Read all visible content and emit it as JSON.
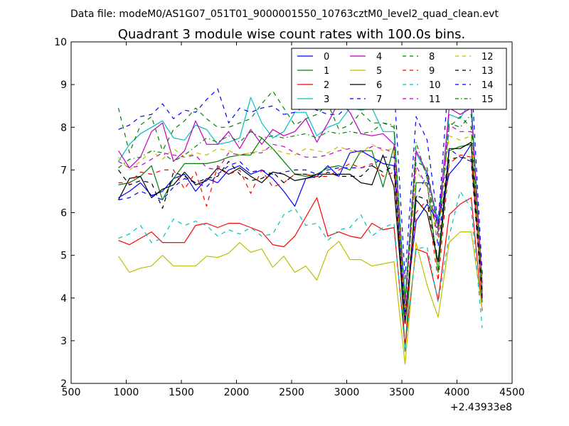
{
  "page": {
    "suptitle": "Data file: modeM0/AS1G07_051T01_9000001550_10763cztM0_level2_quad_clean.evt"
  },
  "chart_data": {
    "type": "line",
    "title": "Quadrant 3 module wise count rates with 100.0s bins.",
    "xlabel": "",
    "ylabel": "",
    "x_offset_label": "+2.43933e8",
    "xlim": [
      500,
      4500
    ],
    "ylim": [
      2,
      10
    ],
    "xticks": [
      500,
      1000,
      1500,
      2000,
      2500,
      3000,
      3500,
      4000,
      4500
    ],
    "yticks": [
      2,
      3,
      4,
      5,
      6,
      7,
      8,
      9,
      10
    ],
    "grid": false,
    "legend": {
      "placement": "top-right",
      "columns": 4
    },
    "x": [
      929,
      1029,
      1129,
      1229,
      1329,
      1429,
      1529,
      1629,
      1729,
      1829,
      1929,
      2029,
      2129,
      2229,
      2329,
      2429,
      2529,
      2629,
      2729,
      2829,
      2929,
      3029,
      3129,
      3229,
      3329,
      3429,
      3529,
      3629,
      3729,
      3829,
      3929,
      4029,
      4129,
      4229
    ],
    "series": [
      {
        "name": "0",
        "color": "#0000ff",
        "dash": "solid",
        "values": [
          6.35,
          6.5,
          6.7,
          6.4,
          6.5,
          6.8,
          6.9,
          6.5,
          6.8,
          6.7,
          7.0,
          7.1,
          6.9,
          7.0,
          6.8,
          6.5,
          6.15,
          6.8,
          6.85,
          7.1,
          6.85,
          7.4,
          7.45,
          7.3,
          7.15,
          7.1,
          3.6,
          5.8,
          6.2,
          5.8,
          6.9,
          7.2,
          7.6,
          4.0
        ]
      },
      {
        "name": "1",
        "color": "#008000",
        "dash": "solid",
        "values": [
          6.65,
          6.7,
          6.85,
          7.1,
          6.3,
          6.8,
          7.15,
          7.15,
          7.15,
          7.2,
          7.3,
          7.35,
          7.35,
          7.75,
          7.5,
          7.2,
          6.9,
          6.85,
          6.9,
          7.05,
          7.1,
          7.0,
          7.45,
          7.45,
          6.6,
          7.55,
          2.75,
          6.7,
          6.7,
          4.6,
          7.45,
          7.55,
          7.6,
          3.9
        ]
      },
      {
        "name": "2",
        "color": "#ff0000",
        "dash": "solid",
        "values": [
          5.35,
          5.25,
          5.4,
          5.55,
          5.3,
          5.3,
          5.3,
          5.7,
          5.75,
          5.65,
          5.75,
          5.75,
          5.65,
          5.55,
          5.25,
          5.2,
          5.45,
          5.9,
          6.35,
          5.45,
          5.55,
          5.45,
          5.4,
          5.75,
          5.6,
          5.65,
          2.9,
          5.15,
          5.05,
          3.95,
          5.95,
          6.2,
          6.35,
          3.7
        ]
      },
      {
        "name": "3",
        "color": "#00bfbf",
        "dash": "solid",
        "values": [
          7.2,
          7.6,
          7.85,
          8.0,
          8.15,
          7.75,
          7.7,
          8.05,
          7.95,
          7.6,
          7.65,
          7.75,
          8.7,
          8.1,
          7.75,
          7.9,
          8.35,
          8.35,
          7.8,
          8.0,
          8.1,
          8.45,
          8.4,
          8.45,
          7.9,
          7.9,
          4.0,
          7.4,
          6.9,
          5.8,
          8.3,
          8.2,
          8.65,
          4.3
        ]
      },
      {
        "name": "4",
        "color": "#bf00bf",
        "dash": "solid",
        "values": [
          7.45,
          7.05,
          7.3,
          7.9,
          8.1,
          7.2,
          7.45,
          8.15,
          7.6,
          7.6,
          7.9,
          7.5,
          7.95,
          7.6,
          7.95,
          7.8,
          7.9,
          8.2,
          7.65,
          8.1,
          8.6,
          8.35,
          7.85,
          7.8,
          7.85,
          7.6,
          3.85,
          7.45,
          6.95,
          5.65,
          8.45,
          8.3,
          8.45,
          4.35
        ]
      },
      {
        "name": "5",
        "color": "#bfbf00",
        "dash": "solid",
        "values": [
          4.98,
          4.6,
          4.7,
          4.75,
          5.0,
          4.75,
          4.75,
          4.75,
          4.98,
          4.95,
          5.05,
          5.3,
          5.07,
          5.15,
          4.72,
          4.98,
          4.6,
          4.75,
          4.42,
          5.1,
          5.33,
          4.9,
          4.9,
          4.75,
          4.8,
          4.85,
          2.45,
          5.3,
          4.3,
          3.55,
          5.3,
          5.55,
          5.55,
          3.75
        ]
      },
      {
        "name": "6",
        "color": "#000000",
        "dash": "solid",
        "values": [
          6.3,
          6.8,
          6.85,
          6.35,
          6.55,
          6.65,
          6.95,
          6.65,
          6.75,
          7.05,
          6.9,
          7.05,
          6.85,
          6.7,
          6.95,
          6.9,
          6.75,
          6.8,
          6.9,
          6.9,
          6.9,
          6.9,
          6.7,
          6.65,
          7.35,
          6.6,
          3.4,
          6.3,
          6.0,
          4.85,
          7.5,
          7.5,
          7.65,
          4.2
        ]
      },
      {
        "name": "7",
        "color": "#0000ff",
        "dash": "dash",
        "values": [
          6.3,
          6.35,
          6.5,
          6.4,
          6.3,
          6.6,
          6.8,
          6.7,
          6.6,
          6.9,
          7.1,
          7.2,
          6.95,
          7.0,
          6.9,
          6.95,
          7.0,
          7.0,
          6.9,
          7.0,
          7.05,
          7.05,
          7.05,
          7.1,
          7.3,
          7.3,
          3.45,
          6.35,
          6.9,
          5.2,
          7.5,
          7.3,
          7.2,
          4.05
        ]
      },
      {
        "name": "8",
        "color": "#008000",
        "dash": "dash",
        "values": [
          8.45,
          7.4,
          8.05,
          8.25,
          7.45,
          7.95,
          8.15,
          8.45,
          8.2,
          8.0,
          8.0,
          8.1,
          8.2,
          8.55,
          8.85,
          8.45,
          8.05,
          8.2,
          8.3,
          8.55,
          7.95,
          8.05,
          8.35,
          8.1,
          8.1,
          8.0,
          3.9,
          7.2,
          7.05,
          5.6,
          8.0,
          8.25,
          8.0,
          4.2
        ]
      },
      {
        "name": "9",
        "color": "#ff0000",
        "dash": "dash",
        "values": [
          6.7,
          6.7,
          6.95,
          6.9,
          7.0,
          7.0,
          6.55,
          6.95,
          6.15,
          7.1,
          6.9,
          7.0,
          6.45,
          7.0,
          6.6,
          6.7,
          6.9,
          6.9,
          6.85,
          6.85,
          7.0,
          7.15,
          7.05,
          7.15,
          6.85,
          6.95,
          3.35,
          6.0,
          6.3,
          4.4,
          7.15,
          7.35,
          7.3,
          4.15
        ]
      },
      {
        "name": "10",
        "color": "#00bfbf",
        "dash": "dash",
        "values": [
          5.4,
          5.5,
          5.7,
          5.3,
          5.4,
          5.85,
          5.7,
          5.8,
          5.7,
          5.45,
          5.6,
          5.5,
          5.65,
          5.45,
          5.5,
          5.95,
          6.1,
          5.7,
          5.75,
          5.35,
          5.6,
          5.65,
          5.95,
          5.45,
          5.65,
          5.75,
          2.8,
          5.15,
          5.2,
          3.9,
          5.45,
          6.5,
          6.1,
          3.3
        ]
      },
      {
        "name": "11",
        "color": "#bf00bf",
        "dash": "dash",
        "values": [
          7.2,
          7.05,
          7.1,
          7.25,
          7.4,
          7.35,
          7.3,
          7.35,
          7.05,
          7.0,
          7.4,
          7.35,
          7.4,
          7.4,
          7.6,
          7.55,
          7.4,
          7.3,
          7.3,
          7.35,
          7.45,
          7.5,
          7.4,
          7.55,
          7.5,
          7.4,
          3.7,
          7.1,
          6.6,
          5.45,
          8.05,
          7.9,
          7.9,
          4.25
        ]
      },
      {
        "name": "12",
        "color": "#bfbf00",
        "dash": "dash",
        "values": [
          7.3,
          7.0,
          7.2,
          7.45,
          7.25,
          7.5,
          7.3,
          7.4,
          7.35,
          7.5,
          7.45,
          7.35,
          7.4,
          7.45,
          7.5,
          7.4,
          7.35,
          7.5,
          7.45,
          7.4,
          7.55,
          7.45,
          7.4,
          7.6,
          7.45,
          7.5,
          3.6,
          7.0,
          6.6,
          5.3,
          7.8,
          7.7,
          7.8,
          4.2
        ]
      },
      {
        "name": "13",
        "color": "#000000",
        "dash": "dash",
        "values": [
          7.0,
          6.65,
          6.75,
          6.7,
          6.1,
          6.95,
          6.85,
          6.7,
          6.8,
          6.85,
          7.2,
          6.9,
          6.75,
          6.8,
          6.95,
          6.7,
          6.9,
          6.9,
          6.8,
          6.95,
          6.85,
          6.85,
          6.85,
          7.1,
          6.95,
          7.1,
          3.4,
          6.4,
          6.3,
          4.85,
          7.25,
          7.3,
          7.25,
          3.95
        ]
      },
      {
        "name": "14",
        "color": "#0000ff",
        "dash": "dash",
        "values": [
          7.95,
          8.05,
          8.25,
          8.3,
          8.55,
          8.2,
          8.4,
          8.35,
          8.65,
          8.9,
          8.1,
          8.45,
          8.35,
          8.45,
          8.5,
          8.3,
          8.35,
          8.5,
          8.4,
          8.3,
          8.3,
          8.55,
          8.9,
          8.45,
          9.2,
          9.0,
          4.45,
          8.25,
          7.7,
          5.75,
          9.35,
          9.3,
          9.3,
          4.55
        ]
      },
      {
        "name": "15",
        "color": "#008000",
        "dash": "dashdot",
        "values": [
          7.05,
          7.25,
          7.3,
          7.45,
          7.4,
          7.2,
          7.35,
          7.55,
          7.75,
          7.65,
          7.8,
          7.65,
          7.9,
          7.75,
          7.8,
          7.75,
          7.8,
          7.85,
          7.75,
          7.9,
          7.85,
          7.9,
          7.85,
          7.9,
          8.1,
          8.05,
          3.9,
          7.65,
          6.8,
          5.5,
          8.1,
          8.0,
          8.3,
          4.2
        ]
      }
    ]
  }
}
